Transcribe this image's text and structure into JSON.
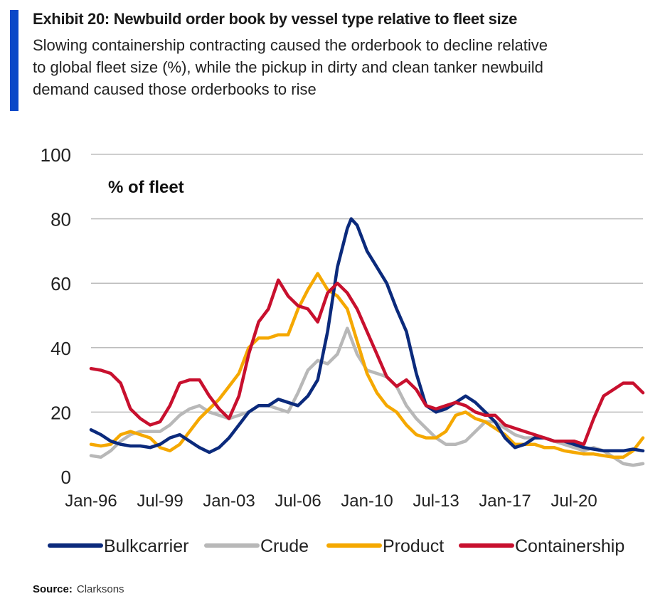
{
  "header": {
    "title": "Exhibit 20: Newbuild order book by vessel type relative to fleet size",
    "subtitle_lines": [
      "Slowing containership contracting caused the orderbook to decline relative",
      "to global fleet size (%), while the pickup in dirty and clean tanker newbuild",
      "demand caused those orderbooks to rise"
    ],
    "accent_color": "#0a48c8"
  },
  "footer": {
    "source_label": "Source:",
    "source_value": "Clarksons"
  },
  "chart_data": {
    "type": "line",
    "title": "Exhibit 20: Newbuild order book by vessel type relative to fleet size",
    "ylabel": "% of fleet",
    "xlabel": "",
    "x_start_year": 1996.0,
    "x_end_year": 2024.0,
    "ylim": [
      0,
      100
    ],
    "yticks": [
      0,
      20,
      40,
      60,
      80,
      100
    ],
    "xticks": [
      {
        "label": "Jan-96",
        "year": 1996.0
      },
      {
        "label": "Jul-99",
        "year": 1999.5
      },
      {
        "label": "Jan-03",
        "year": 2003.0
      },
      {
        "label": "Jul-06",
        "year": 2006.5
      },
      {
        "label": "Jan-10",
        "year": 2010.0
      },
      {
        "label": "Jul-13",
        "year": 2013.5
      },
      {
        "label": "Jan-17",
        "year": 2017.0
      },
      {
        "label": "Jul-20",
        "year": 2020.5
      }
    ],
    "grid": true,
    "legend_position": "bottom",
    "series": [
      {
        "name": "Bulkcarrier",
        "color": "#0b2a7c",
        "points": [
          [
            1996.0,
            14.5
          ],
          [
            1996.5,
            13
          ],
          [
            1997.0,
            11
          ],
          [
            1997.5,
            10
          ],
          [
            1998.0,
            9.5
          ],
          [
            1998.5,
            9.5
          ],
          [
            1999.0,
            9
          ],
          [
            1999.5,
            10
          ],
          [
            2000.0,
            12
          ],
          [
            2000.5,
            13
          ],
          [
            2001.0,
            11
          ],
          [
            2001.5,
            9
          ],
          [
            2002.0,
            7.5
          ],
          [
            2002.5,
            9
          ],
          [
            2003.0,
            12
          ],
          [
            2003.5,
            16
          ],
          [
            2004.0,
            20
          ],
          [
            2004.5,
            22
          ],
          [
            2005.0,
            22
          ],
          [
            2005.5,
            24
          ],
          [
            2006.0,
            23
          ],
          [
            2006.5,
            22
          ],
          [
            2007.0,
            25
          ],
          [
            2007.5,
            30
          ],
          [
            2008.0,
            45
          ],
          [
            2008.5,
            65
          ],
          [
            2009.0,
            77
          ],
          [
            2009.2,
            80
          ],
          [
            2009.5,
            78
          ],
          [
            2010.0,
            70
          ],
          [
            2010.5,
            65
          ],
          [
            2011.0,
            60
          ],
          [
            2011.5,
            52
          ],
          [
            2012.0,
            45
          ],
          [
            2012.5,
            32
          ],
          [
            2013.0,
            22
          ],
          [
            2013.5,
            20
          ],
          [
            2014.0,
            21
          ],
          [
            2014.5,
            23
          ],
          [
            2015.0,
            25
          ],
          [
            2015.5,
            23
          ],
          [
            2016.0,
            20
          ],
          [
            2016.5,
            17
          ],
          [
            2017.0,
            12
          ],
          [
            2017.5,
            9
          ],
          [
            2018.0,
            10
          ],
          [
            2018.5,
            12
          ],
          [
            2019.0,
            12
          ],
          [
            2019.5,
            11
          ],
          [
            2020.0,
            11
          ],
          [
            2020.5,
            10
          ],
          [
            2021.0,
            9
          ],
          [
            2021.5,
            8.5
          ],
          [
            2022.0,
            8
          ],
          [
            2022.5,
            8
          ],
          [
            2023.0,
            8
          ],
          [
            2023.5,
            8.5
          ],
          [
            2024.0,
            8
          ]
        ]
      },
      {
        "name": "Crude",
        "color": "#b8b8b8",
        "points": [
          [
            1996.0,
            6.5
          ],
          [
            1996.5,
            6
          ],
          [
            1997.0,
            8
          ],
          [
            1997.5,
            11
          ],
          [
            1998.0,
            13
          ],
          [
            1998.5,
            14
          ],
          [
            1999.0,
            14
          ],
          [
            1999.5,
            14
          ],
          [
            2000.0,
            16
          ],
          [
            2000.5,
            19
          ],
          [
            2001.0,
            21
          ],
          [
            2001.5,
            22
          ],
          [
            2002.0,
            20
          ],
          [
            2002.5,
            19
          ],
          [
            2003.0,
            18
          ],
          [
            2003.5,
            19
          ],
          [
            2004.0,
            20
          ],
          [
            2004.5,
            22
          ],
          [
            2005.0,
            22
          ],
          [
            2005.5,
            21
          ],
          [
            2006.0,
            20
          ],
          [
            2006.5,
            26
          ],
          [
            2007.0,
            33
          ],
          [
            2007.5,
            36
          ],
          [
            2008.0,
            35
          ],
          [
            2008.5,
            38
          ],
          [
            2009.0,
            46
          ],
          [
            2009.5,
            38
          ],
          [
            2010.0,
            33
          ],
          [
            2010.5,
            32
          ],
          [
            2011.0,
            31
          ],
          [
            2011.5,
            28
          ],
          [
            2012.0,
            22
          ],
          [
            2012.5,
            18
          ],
          [
            2013.0,
            15
          ],
          [
            2013.5,
            12
          ],
          [
            2014.0,
            10
          ],
          [
            2014.5,
            10
          ],
          [
            2015.0,
            11
          ],
          [
            2015.5,
            14
          ],
          [
            2016.0,
            17
          ],
          [
            2016.5,
            17
          ],
          [
            2017.0,
            15
          ],
          [
            2017.5,
            13
          ],
          [
            2018.0,
            12
          ],
          [
            2018.5,
            12
          ],
          [
            2019.0,
            12
          ],
          [
            2019.5,
            11
          ],
          [
            2020.0,
            10
          ],
          [
            2020.5,
            9
          ],
          [
            2021.0,
            8
          ],
          [
            2021.5,
            9
          ],
          [
            2022.0,
            8
          ],
          [
            2022.5,
            6
          ],
          [
            2023.0,
            4
          ],
          [
            2023.5,
            3.5
          ],
          [
            2024.0,
            4
          ]
        ]
      },
      {
        "name": "Product",
        "color": "#f5a800",
        "points": [
          [
            1996.0,
            10
          ],
          [
            1996.5,
            9.5
          ],
          [
            1997.0,
            10
          ],
          [
            1997.5,
            13
          ],
          [
            1998.0,
            14
          ],
          [
            1998.5,
            13
          ],
          [
            1999.0,
            12
          ],
          [
            1999.5,
            9
          ],
          [
            2000.0,
            8
          ],
          [
            2000.5,
            10
          ],
          [
            2001.0,
            14
          ],
          [
            2001.5,
            18
          ],
          [
            2002.0,
            21
          ],
          [
            2002.5,
            24
          ],
          [
            2003.0,
            28
          ],
          [
            2003.5,
            32
          ],
          [
            2004.0,
            40
          ],
          [
            2004.5,
            43
          ],
          [
            2005.0,
            43
          ],
          [
            2005.5,
            44
          ],
          [
            2006.0,
            44
          ],
          [
            2006.5,
            52
          ],
          [
            2007.0,
            58
          ],
          [
            2007.5,
            63
          ],
          [
            2008.0,
            58
          ],
          [
            2008.5,
            56
          ],
          [
            2009.0,
            52
          ],
          [
            2009.5,
            42
          ],
          [
            2010.0,
            32
          ],
          [
            2010.5,
            26
          ],
          [
            2011.0,
            22
          ],
          [
            2011.5,
            20
          ],
          [
            2012.0,
            16
          ],
          [
            2012.5,
            13
          ],
          [
            2013.0,
            12
          ],
          [
            2013.5,
            12
          ],
          [
            2014.0,
            14
          ],
          [
            2014.5,
            19
          ],
          [
            2015.0,
            20
          ],
          [
            2015.5,
            18
          ],
          [
            2016.0,
            17
          ],
          [
            2016.5,
            15
          ],
          [
            2017.0,
            13
          ],
          [
            2017.5,
            10
          ],
          [
            2018.0,
            10
          ],
          [
            2018.5,
            10
          ],
          [
            2019.0,
            9
          ],
          [
            2019.5,
            9
          ],
          [
            2020.0,
            8
          ],
          [
            2020.5,
            7.5
          ],
          [
            2021.0,
            7
          ],
          [
            2021.5,
            7
          ],
          [
            2022.0,
            6.5
          ],
          [
            2022.5,
            6
          ],
          [
            2023.0,
            6
          ],
          [
            2023.5,
            8
          ],
          [
            2024.0,
            12
          ]
        ]
      },
      {
        "name": "Containership",
        "color": "#c8102e",
        "points": [
          [
            1996.0,
            33.5
          ],
          [
            1996.5,
            33
          ],
          [
            1997.0,
            32
          ],
          [
            1997.5,
            29
          ],
          [
            1998.0,
            21
          ],
          [
            1998.5,
            18
          ],
          [
            1999.0,
            16
          ],
          [
            1999.5,
            17
          ],
          [
            2000.0,
            22
          ],
          [
            2000.5,
            29
          ],
          [
            2001.0,
            30
          ],
          [
            2001.5,
            30
          ],
          [
            2002.0,
            25
          ],
          [
            2002.5,
            21
          ],
          [
            2003.0,
            18
          ],
          [
            2003.5,
            25
          ],
          [
            2004.0,
            38
          ],
          [
            2004.5,
            48
          ],
          [
            2005.0,
            52
          ],
          [
            2005.5,
            61
          ],
          [
            2006.0,
            56
          ],
          [
            2006.5,
            53
          ],
          [
            2007.0,
            52
          ],
          [
            2007.5,
            48
          ],
          [
            2008.0,
            57
          ],
          [
            2008.5,
            60
          ],
          [
            2009.0,
            57
          ],
          [
            2009.5,
            52
          ],
          [
            2010.0,
            45
          ],
          [
            2010.5,
            38
          ],
          [
            2011.0,
            31
          ],
          [
            2011.5,
            28
          ],
          [
            2012.0,
            30
          ],
          [
            2012.5,
            27
          ],
          [
            2013.0,
            22
          ],
          [
            2013.5,
            21
          ],
          [
            2014.0,
            22
          ],
          [
            2014.5,
            23
          ],
          [
            2015.0,
            22
          ],
          [
            2015.5,
            20
          ],
          [
            2016.0,
            19
          ],
          [
            2016.5,
            19
          ],
          [
            2017.0,
            16
          ],
          [
            2017.5,
            15
          ],
          [
            2018.0,
            14
          ],
          [
            2018.5,
            13
          ],
          [
            2019.0,
            12
          ],
          [
            2019.5,
            11
          ],
          [
            2020.0,
            11
          ],
          [
            2020.5,
            11
          ],
          [
            2021.0,
            10
          ],
          [
            2021.5,
            18
          ],
          [
            2022.0,
            25
          ],
          [
            2022.5,
            27
          ],
          [
            2023.0,
            29
          ],
          [
            2023.5,
            29
          ],
          [
            2024.0,
            26
          ]
        ]
      }
    ]
  }
}
